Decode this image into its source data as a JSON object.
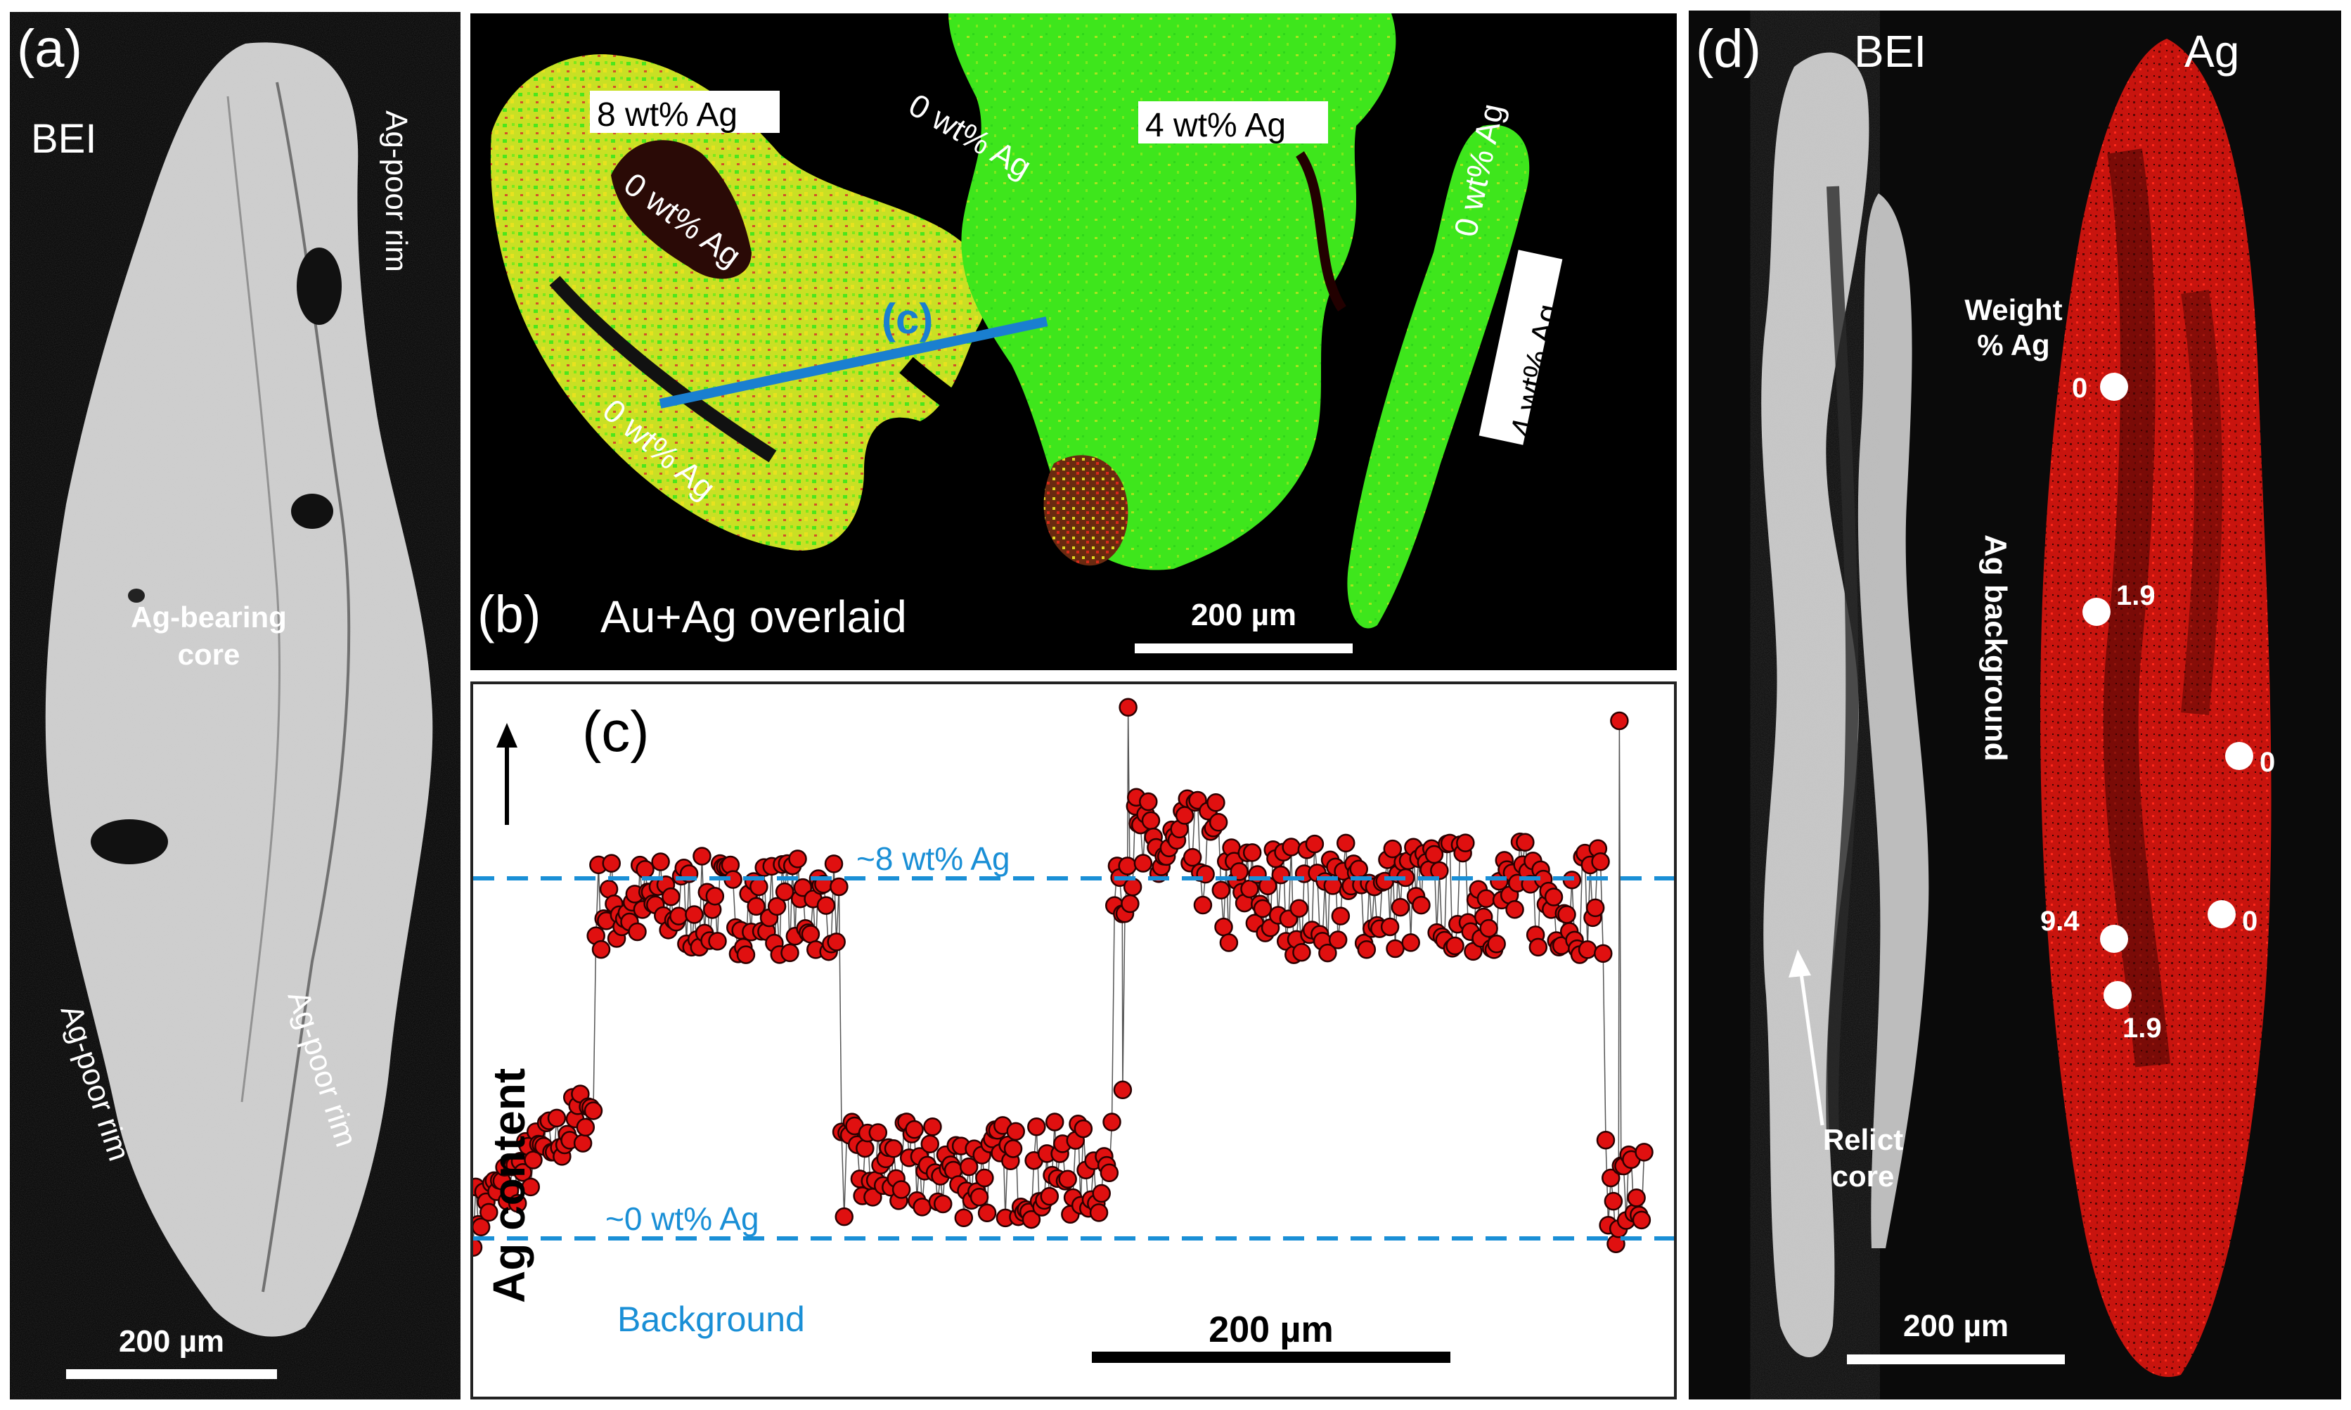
{
  "panel_a": {
    "letter": "(a)",
    "mode": "BEI",
    "label_rim_top": "Ag-poor rim",
    "label_core_1": "Ag-bearing",
    "label_core_2": "core",
    "label_rim_left": "Ag-poor rim",
    "label_rim_right": "Ag-poor rim",
    "scale": "200 µm"
  },
  "panel_b": {
    "letter": "(b)",
    "caption": "Au+Ag overlaid",
    "label_8": "8 wt% Ag",
    "label_4_top": "4 wt% Ag",
    "label_4_right": "4 wt% Ag",
    "label_0_center": "0 wt% Ag",
    "label_0_top": "0 wt% Ag",
    "label_0_lower": "0 wt% Ag",
    "label_0_right": "0 wt% Ag",
    "line_label": "(c)",
    "scale": "200 µm",
    "colors": {
      "gold": "#3ee61c",
      "silver_rich": "#e8e21f",
      "hot": "#d42a18"
    }
  },
  "panel_c": {
    "letter": "(c)",
    "ylabel": "Ag content",
    "ref_high": "~8 wt% Ag",
    "ref_low": "~0 wt% Ag",
    "background": "Background",
    "scale": "200 µm",
    "line_color": "#1a8fd6",
    "point_color": "#e01010"
  },
  "panel_d": {
    "letter": "(d)",
    "mode_bei": "BEI",
    "mode_ag": "Ag",
    "weight_1": "Weight",
    "weight_2": "% Ag",
    "background_label": "Ag background",
    "relict_1": "Relict",
    "relict_2": "core",
    "scale": "200 µm",
    "spots": [
      {
        "id": "s1",
        "value": "0"
      },
      {
        "id": "s2",
        "value": "1.9"
      },
      {
        "id": "s3",
        "value": "0"
      },
      {
        "id": "s4",
        "value": "9.4"
      },
      {
        "id": "s5",
        "value": "0"
      },
      {
        "id": "s6",
        "value": "1.9"
      }
    ]
  },
  "chart_data": {
    "type": "scatter",
    "title": "",
    "xlabel": "",
    "ylabel": "Ag content",
    "reference_lines": [
      {
        "label": "~8 wt% Ag",
        "y": 8
      },
      {
        "label": "~0 wt% Ag",
        "y": 0
      }
    ],
    "ylim": [
      -3,
      12
    ],
    "segments": [
      {
        "x_start": 0,
        "x_end": 45,
        "level": 0.5,
        "ramp_to": 3.0,
        "noise": 0.7
      },
      {
        "x_start": 45,
        "x_end": 135,
        "level": 7.4,
        "noise": 1.1
      },
      {
        "x_start": 135,
        "x_end": 235,
        "level": 1.5,
        "noise": 1.1
      },
      {
        "x_start": 235,
        "x_end": 275,
        "level": 8.5,
        "noise": 1.3
      },
      {
        "x_start": 275,
        "x_end": 415,
        "level": 7.6,
        "noise": 1.3
      },
      {
        "x_start": 415,
        "x_end": 430,
        "level": 1.0,
        "noise": 1.2
      }
    ],
    "peaks": [
      {
        "x": 240,
        "y": 11.8
      },
      {
        "x": 243,
        "y": 9.8
      },
      {
        "x": 238,
        "y": 3.3
      },
      {
        "x": 420,
        "y": 11.5
      }
    ],
    "xlim": [
      0,
      440
    ]
  }
}
